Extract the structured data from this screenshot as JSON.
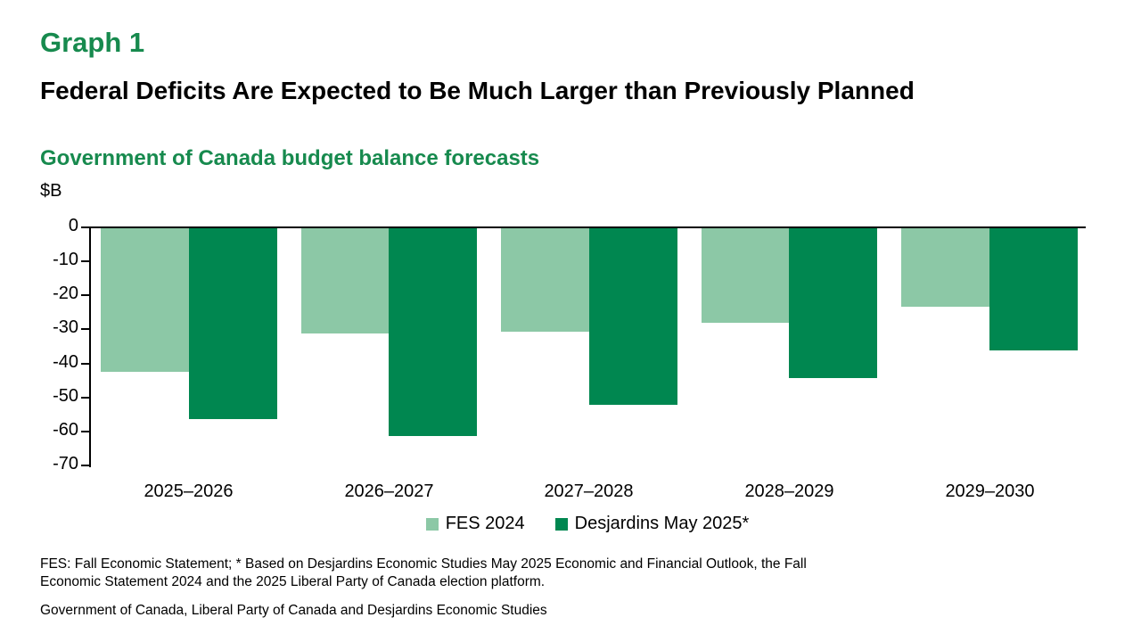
{
  "page": {
    "graph_label": "Graph 1",
    "title": "Federal Deficits Are Expected to Be Much Larger than Previously Planned",
    "subtitle": "Government of Canada budget balance forecasts",
    "axis_unit": "$B",
    "footnote": "FES: Fall Economic Statement; * Based on Desjardins Economic Studies May 2025 Economic and Financial Outlook, the Fall Economic Statement 2024 and the 2025 Liberal Party of Canada election platform.",
    "source": "Government of Canada, Liberal Party of Canada and Desjardins Economic Studies"
  },
  "colors": {
    "heading_green": "#178a4e",
    "fes_light_green": "#8cc8a6",
    "desjardins_dark_green": "#008750",
    "axis_black": "#000000"
  },
  "chart_data": {
    "type": "bar",
    "title": "Government of Canada budget balance forecasts",
    "xlabel": "",
    "ylabel": "$B",
    "ylim": [
      -70,
      0
    ],
    "yticks": [
      0,
      -10,
      -20,
      -30,
      -40,
      -50,
      -60,
      -70
    ],
    "grid": false,
    "legend_position": "bottom",
    "categories": [
      "2025–2026",
      "2026–2027",
      "2027–2028",
      "2028–2029",
      "2029–2030"
    ],
    "series": [
      {
        "name": "FES 2024",
        "color": "#8cc8a6",
        "values": [
          -42.2,
          -31.0,
          -30.4,
          -27.8,
          -23.0
        ]
      },
      {
        "name": "Desjardins May 2025*",
        "color": "#008750",
        "values": [
          -56,
          -61,
          -52,
          -44,
          -36
        ]
      }
    ]
  }
}
